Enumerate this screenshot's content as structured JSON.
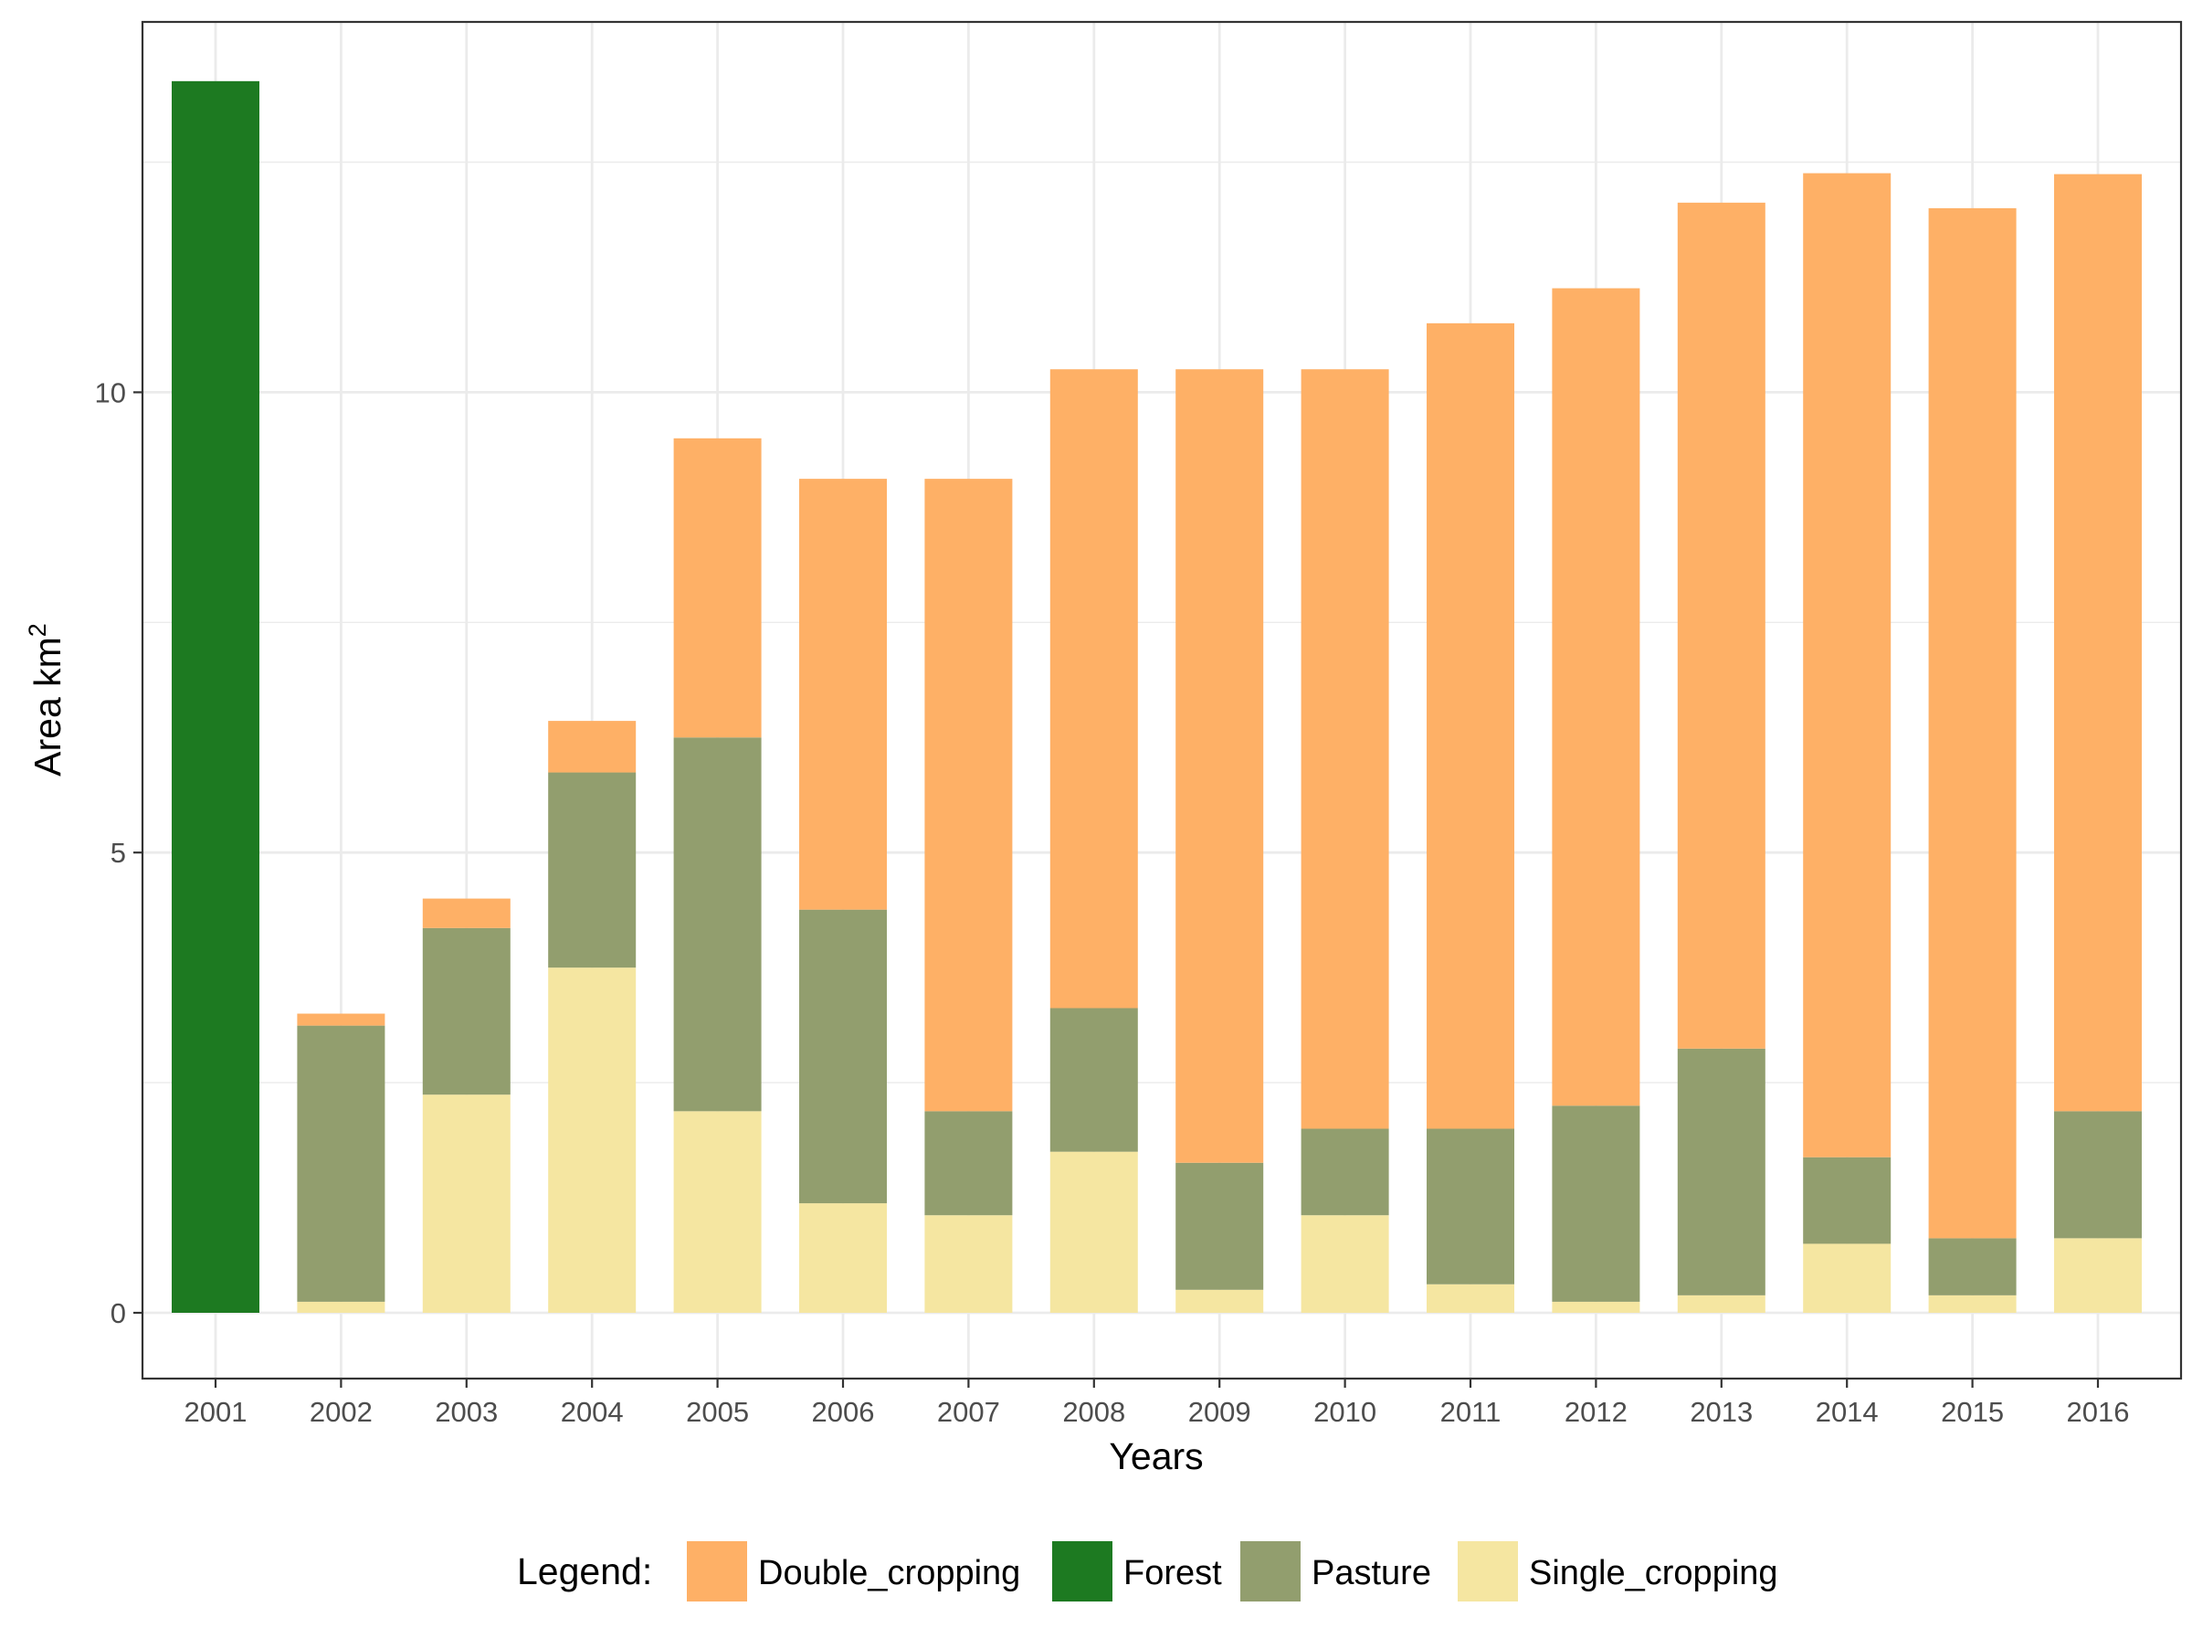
{
  "chart_data": {
    "type": "bar",
    "stacked": true,
    "categories": [
      "2001",
      "2002",
      "2003",
      "2004",
      "2005",
      "2006",
      "2007",
      "2008",
      "2009",
      "2010",
      "2011",
      "2012",
      "2013",
      "2014",
      "2015",
      "2016"
    ],
    "series": [
      {
        "name": "Single_cropping",
        "color": "#F5E6A1",
        "values": [
          0,
          0.12,
          2.37,
          3.75,
          2.19,
          1.19,
          1.06,
          1.75,
          0.25,
          1.06,
          0.31,
          0.12,
          0.19,
          0.75,
          0.19,
          0.81
        ]
      },
      {
        "name": "Pasture",
        "color": "#929E6E",
        "values": [
          0,
          3.0,
          1.81,
          2.12,
          4.06,
          3.19,
          1.13,
          1.56,
          1.38,
          0.94,
          1.69,
          2.13,
          2.68,
          0.94,
          0.62,
          1.38
        ]
      },
      {
        "name": "Forest",
        "color": "#1D7A21",
        "values": [
          13.38,
          0,
          0,
          0,
          0,
          0,
          0,
          0,
          0,
          0,
          0,
          0,
          0,
          0,
          0,
          0
        ]
      },
      {
        "name": "Double_cropping",
        "color": "#FEB066",
        "values": [
          0,
          0.13,
          0.32,
          0.56,
          3.25,
          4.68,
          6.87,
          6.94,
          8.62,
          8.25,
          8.75,
          8.88,
          9.19,
          10.69,
          11.19,
          10.18
        ]
      }
    ],
    "xlabel": "Years",
    "ylabel_main": "Area km",
    "ylabel_sup": "2",
    "y_ticks": [
      "0",
      "5",
      "10"
    ],
    "ylim": [
      0,
      14.05
    ],
    "grid": true,
    "legend": {
      "title": "Legend:",
      "position": "bottom",
      "order": [
        "Double_cropping",
        "Forest",
        "Pasture",
        "Single_cropping"
      ]
    }
  }
}
